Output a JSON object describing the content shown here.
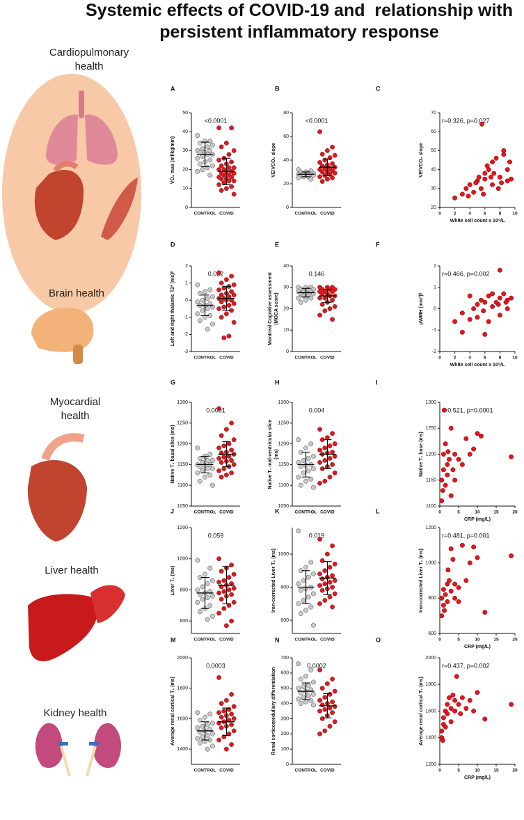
{
  "title": "Systemic effects of COVID-19 and  relationship with persistent inflammatory response",
  "sections": [
    "Cardiopulmonary health",
    "Brain health",
    "Myocardial health",
    "Liver health",
    "Kidney health"
  ],
  "chart_data": [
    {
      "type": "strip",
      "panel": "A",
      "annotation": "<0.0001",
      "ylabel": "VO₂ max (ml/kg/min)",
      "ylim": [
        0,
        50
      ],
      "yticks": [
        0,
        10,
        20,
        30,
        40,
        50
      ],
      "groups": [
        {
          "name": "CONTROL",
          "color": "#c8c8c8",
          "values": [
            38,
            35,
            35,
            34,
            33,
            32,
            31,
            30,
            30,
            29,
            29,
            28,
            28,
            27,
            26,
            25,
            24,
            23,
            22,
            21,
            20,
            19,
            17
          ],
          "mean": 28,
          "sd": 6.5
        },
        {
          "name": "COVID",
          "color": "#e8141a",
          "values": [
            42,
            42,
            34,
            32,
            30,
            28,
            26,
            25,
            24,
            23,
            22,
            21,
            21,
            20,
            20,
            19,
            19,
            18,
            18,
            17,
            17,
            16,
            16,
            15,
            15,
            14,
            14,
            13,
            12,
            11,
            10,
            9,
            7
          ],
          "mean": 19,
          "sd": 7
        }
      ]
    },
    {
      "type": "strip",
      "panel": "B",
      "annotation": "<0.0001",
      "ylabel": "VE/VCO₂ slope",
      "ylim": [
        0,
        80
      ],
      "yticks": [
        0,
        20,
        40,
        60,
        80
      ],
      "groups": [
        {
          "name": "CONTROL",
          "color": "#c8c8c8",
          "values": [
            32,
            31,
            30,
            30,
            29,
            29,
            28,
            28,
            28,
            27,
            27,
            27,
            26,
            26,
            25,
            24
          ],
          "mean": 28,
          "sd": 2
        },
        {
          "name": "COVID",
          "color": "#e8141a",
          "values": [
            64,
            51,
            48,
            45,
            44,
            42,
            40,
            38,
            37,
            36,
            35,
            34,
            33,
            33,
            32,
            31,
            30,
            30,
            29,
            28,
            27,
            26,
            25,
            24,
            22
          ],
          "mean": 34,
          "sd": 7
        }
      ]
    },
    {
      "type": "scatter",
      "panel": "C",
      "annotation": "r=0.326, p=0.027",
      "xlabel": "White cell count x 10⁹/L",
      "ylabel": "VE/VCO₂ slope",
      "xlim": [
        0,
        10
      ],
      "xticks": [
        0,
        2,
        4,
        6,
        8,
        10
      ],
      "ylim": [
        20,
        70
      ],
      "yticks": [
        20,
        30,
        40,
        50,
        60,
        70
      ],
      "color": "#e8141a",
      "x": [
        5.6,
        2,
        3,
        3.5,
        4,
        4.5,
        5,
        5.2,
        5.5,
        6,
        6,
        6.3,
        6.5,
        7,
        7,
        7.5,
        7.8,
        8,
        8.5,
        8.5,
        9,
        9,
        9.3,
        9.5,
        4.8,
        5.8,
        6.8,
        8.2,
        3.8,
        7.2
      ],
      "y": [
        64,
        25,
        27,
        30,
        32,
        28,
        34,
        36,
        30,
        38,
        35,
        42,
        40,
        32,
        44,
        46,
        30,
        36,
        48,
        50,
        34,
        40,
        44,
        35,
        33,
        27,
        36,
        33,
        26,
        38
      ]
    },
    {
      "type": "strip",
      "panel": "D",
      "annotation": "0.022",
      "ylabel": "Left and right thalamic T2* (ms)ᵝ",
      "ylim": [
        -3,
        2
      ],
      "yticks": [
        -3,
        -2,
        -1,
        0,
        1,
        2
      ],
      "groups": [
        {
          "name": "CONTROL",
          "color": "#c8c8c8",
          "values": [
            0.9,
            0.6,
            0.5,
            0.4,
            0.2,
            0.1,
            0,
            -0.1,
            -0.2,
            -0.3,
            -0.3,
            -0.4,
            -0.5,
            -0.6,
            -0.8,
            -0.9,
            -1,
            -1.2,
            -1.4,
            -1.7
          ],
          "mean": -0.3,
          "sd": 0.6
        },
        {
          "name": "COVID",
          "color": "#e8141a",
          "values": [
            1.6,
            1.4,
            1.2,
            1,
            0.9,
            0.8,
            0.7,
            0.6,
            0.5,
            0.4,
            0.3,
            0.3,
            0.2,
            0.1,
            0.1,
            0,
            0,
            -0.1,
            -0.2,
            -0.3,
            -0.4,
            -0.5,
            -0.6,
            -0.8,
            -1,
            -1.3,
            -2.1,
            -2.2
          ],
          "mean": 0.1,
          "sd": 0.7
        }
      ]
    },
    {
      "type": "strip",
      "panel": "E",
      "annotation": "0.146",
      "ylabel": [
        "Montreal Cognitive assessment",
        "(MOCA score)"
      ],
      "ylim": [
        0,
        40
      ],
      "yticks": [
        0,
        10,
        20,
        30,
        40
      ],
      "groups": [
        {
          "name": "CONTROL",
          "color": "#c8c8c8",
          "values": [
            30,
            30,
            30,
            29,
            29,
            29,
            28,
            28,
            28,
            27,
            27,
            27,
            26,
            26,
            25,
            25,
            24,
            23
          ],
          "mean": 27.5,
          "sd": 2
        },
        {
          "name": "COVID",
          "color": "#e8141a",
          "values": [
            30,
            30,
            30,
            29,
            29,
            29,
            28,
            28,
            28,
            27,
            27,
            26,
            26,
            25,
            25,
            24,
            23,
            22,
            21,
            20,
            19,
            17,
            15
          ],
          "mean": 26,
          "sd": 3
        }
      ]
    },
    {
      "type": "scatter",
      "panel": "F",
      "annotation": "r=0.466, p=0.002",
      "xlabel": "White cell count x 10⁹/L",
      "ylabel": "pWMH (mm³)ᵝ",
      "xlim": [
        0,
        10
      ],
      "xticks": [
        0,
        2,
        4,
        6,
        8,
        10
      ],
      "ylim": [
        -2,
        2
      ],
      "yticks": [
        -2,
        -1,
        0,
        1,
        2
      ],
      "color": "#e8141a",
      "x": [
        8,
        2,
        3,
        3,
        4,
        4.5,
        5,
        5,
        5.5,
        6,
        6,
        6.5,
        6.5,
        7,
        7,
        7.5,
        8,
        8,
        8.5,
        9,
        9,
        9.5,
        4,
        5.8,
        7.8,
        8.8
      ],
      "y": [
        1.8,
        -0.6,
        -1.1,
        -0.2,
        -0.5,
        0,
        0.2,
        -0.4,
        0.4,
        -1.2,
        0.3,
        0.6,
        -0.6,
        0.1,
        0.7,
        0.3,
        0.5,
        -0.3,
        0.7,
        0.4,
        0,
        0.5,
        0.6,
        -0.1,
        0.2,
        0.3
      ]
    },
    {
      "type": "strip",
      "panel": "G",
      "annotation": "0.0001",
      "ylabel": "Native T₁ basal slice  (ms)",
      "ylim": [
        1050,
        1300
      ],
      "yticks": [
        1050,
        1100,
        1150,
        1200,
        1250,
        1300
      ],
      "groups": [
        {
          "name": "CONTROL",
          "color": "#c8c8c8",
          "values": [
            1190,
            1175,
            1170,
            1165,
            1160,
            1160,
            1155,
            1150,
            1150,
            1148,
            1145,
            1140,
            1140,
            1135,
            1130,
            1125,
            1120,
            1110,
            1100
          ],
          "mean": 1150,
          "sd": 20
        },
        {
          "name": "COVID",
          "color": "#e8141a",
          "values": [
            1285,
            1250,
            1235,
            1220,
            1210,
            1200,
            1195,
            1190,
            1185,
            1180,
            1178,
            1175,
            1170,
            1168,
            1165,
            1160,
            1158,
            1155,
            1150,
            1145,
            1140,
            1135,
            1130,
            1125,
            1120
          ],
          "mean": 1175,
          "sd": 30
        }
      ]
    },
    {
      "type": "strip",
      "panel": "H",
      "annotation": "0.004",
      "ylabel": [
        "Native T₁ mid-ventricular slice",
        "(ms)"
      ],
      "ylim": [
        1050,
        1300
      ],
      "yticks": [
        1050,
        1100,
        1150,
        1200,
        1250,
        1300
      ],
      "groups": [
        {
          "name": "CONTROL",
          "color": "#c8c8c8",
          "values": [
            1210,
            1200,
            1190,
            1180,
            1170,
            1165,
            1160,
            1155,
            1150,
            1148,
            1145,
            1140,
            1135,
            1130,
            1120,
            1115,
            1110,
            1100,
            1095
          ],
          "mean": 1150,
          "sd": 30
        },
        {
          "name": "COVID",
          "color": "#e8141a",
          "values": [
            1235,
            1225,
            1215,
            1210,
            1200,
            1195,
            1190,
            1185,
            1180,
            1178,
            1175,
            1170,
            1165,
            1160,
            1155,
            1150,
            1145,
            1140,
            1130,
            1120,
            1110,
            1105
          ],
          "mean": 1175,
          "sd": 35
        }
      ]
    },
    {
      "type": "scatter",
      "panel": "I",
      "annotation": "r=0.521, p=0.0001",
      "xlabel": "CRP (mg/L)",
      "ylabel": "Native T₁ base (ms)",
      "xlim": [
        0,
        20
      ],
      "xticks": [
        0,
        5,
        10,
        15,
        20
      ],
      "ylim": [
        1100,
        1300
      ],
      "yticks": [
        1100,
        1150,
        1200,
        1250,
        1300
      ],
      "color": "#e8141a",
      "x": [
        1.2,
        0.5,
        0.5,
        1,
        1,
        1.5,
        1.5,
        2,
        2,
        2.5,
        3,
        3,
        3.5,
        4,
        4,
        5,
        6,
        7,
        8,
        9,
        10,
        11,
        0.8,
        19,
        2.2
      ],
      "y": [
        1285,
        1110,
        1150,
        1170,
        1200,
        1140,
        1220,
        1180,
        1160,
        1190,
        1120,
        1250,
        1170,
        1200,
        1150,
        1190,
        1180,
        1230,
        1200,
        1210,
        1240,
        1235,
        1130,
        1195,
        1205
      ]
    },
    {
      "type": "strip",
      "panel": "J",
      "annotation": "0.059",
      "ylabel": "Liver  T₁ (ms)",
      "ylim": [
        520,
        1200
      ],
      "yticks": [
        600,
        800,
        1000,
        1200
      ],
      "groups": [
        {
          "name": "CONTROL",
          "color": "#c8c8c8",
          "values": [
            990,
            940,
            900,
            880,
            860,
            840,
            820,
            800,
            790,
            780,
            770,
            760,
            750,
            740,
            720,
            700,
            680,
            660,
            630,
            610
          ],
          "mean": 780,
          "sd": 100
        },
        {
          "name": "COVID",
          "color": "#e8141a",
          "values": [
            1000,
            960,
            940,
            920,
            900,
            880,
            860,
            850,
            840,
            830,
            820,
            810,
            800,
            790,
            780,
            770,
            760,
            740,
            720,
            700,
            680,
            650,
            600,
            570
          ],
          "mean": 830,
          "sd": 120
        }
      ]
    },
    {
      "type": "strip",
      "panel": "K",
      "annotation": "0.019",
      "ylabel": "Iron-corrected Liver T₁ (ms)",
      "ylim": [
        520,
        1160
      ],
      "yticks": [
        600,
        800,
        1000
      ],
      "groups": [
        {
          "name": "CONTROL",
          "color": "#c8c8c8",
          "values": [
            1140,
            950,
            920,
            900,
            880,
            860,
            840,
            820,
            800,
            790,
            780,
            760,
            740,
            720,
            700,
            680,
            660,
            640,
            570
          ],
          "mean": 800,
          "sd": 100
        },
        {
          "name": "COVID",
          "color": "#e8141a",
          "values": [
            1090,
            1050,
            1000,
            960,
            940,
            920,
            900,
            880,
            870,
            860,
            850,
            840,
            830,
            820,
            810,
            800,
            790,
            780,
            760,
            740,
            720,
            700,
            680
          ],
          "mean": 855,
          "sd": 100
        }
      ]
    },
    {
      "type": "scatter",
      "panel": "L",
      "annotation": "r=0.481, p=0.001",
      "xlabel": "CRP (mg/L)",
      "ylabel": "Iron-corrected Liver T₁ (ms)",
      "xlim": [
        0,
        20
      ],
      "xticks": [
        0,
        5,
        10,
        15,
        20
      ],
      "ylim": [
        600,
        1200
      ],
      "yticks": [
        600,
        800,
        1000,
        1200
      ],
      "color": "#e8141a",
      "x": [
        0.5,
        0.5,
        1,
        1,
        1.5,
        2,
        2,
        2.5,
        3,
        3,
        4,
        4,
        5,
        5,
        6,
        7,
        8,
        9,
        10,
        12,
        19,
        1.2,
        2.2,
        3.5
      ],
      "y": [
        700,
        800,
        760,
        850,
        820,
        880,
        780,
        900,
        840,
        1080,
        800,
        880,
        860,
        780,
        1100,
        900,
        1000,
        1090,
        1030,
        720,
        1040,
        730,
        960,
        1020
      ]
    },
    {
      "type": "strip",
      "panel": "M",
      "annotation": "0.0003",
      "ylabel": "Average renal cortical  T₁ (ms)",
      "ylim": [
        1300,
        2000
      ],
      "yticks": [
        1400,
        1600,
        1800,
        2000
      ],
      "groups": [
        {
          "name": "CONTROL",
          "color": "#c8c8c8",
          "values": [
            1640,
            1630,
            1610,
            1590,
            1570,
            1560,
            1550,
            1540,
            1530,
            1520,
            1510,
            1500,
            1490,
            1480,
            1470,
            1460,
            1450,
            1440,
            1420,
            1400
          ],
          "mean": 1520,
          "sd": 60
        },
        {
          "name": "COVID",
          "color": "#e8141a",
          "values": [
            1870,
            1760,
            1720,
            1700,
            1680,
            1660,
            1650,
            1640,
            1630,
            1620,
            1610,
            1600,
            1590,
            1580,
            1570,
            1560,
            1550,
            1540,
            1520,
            1500,
            1480,
            1460,
            1430,
            1400
          ],
          "mean": 1580,
          "sd": 90
        }
      ]
    },
    {
      "type": "strip",
      "panel": "N",
      "annotation": "0.0002",
      "ylabel": "Renal corticomedullary differentiation",
      "ylim": [
        0,
        700
      ],
      "yticks": [
        0,
        100,
        200,
        300,
        400,
        500,
        600,
        700
      ],
      "groups": [
        {
          "name": "CONTROL",
          "color": "#c8c8c8",
          "values": [
            660,
            620,
            580,
            560,
            540,
            520,
            510,
            500,
            490,
            480,
            470,
            460,
            450,
            440,
            430,
            420,
            410,
            400,
            390
          ],
          "mean": 480,
          "sd": 55
        },
        {
          "name": "COVID",
          "color": "#e8141a",
          "values": [
            620,
            560,
            530,
            500,
            480,
            460,
            440,
            420,
            410,
            400,
            390,
            380,
            370,
            360,
            350,
            340,
            320,
            300,
            280,
            250,
            220,
            200
          ],
          "mean": 385,
          "sd": 80
        }
      ]
    },
    {
      "type": "scatter",
      "panel": "O",
      "annotation": "r=0.437, p=0.002",
      "xlabel": "CRP (mg/L)",
      "ylabel": "Average renal cortical  T₁ (ms)",
      "xlim": [
        0,
        20
      ],
      "xticks": [
        0,
        5,
        10,
        15,
        20
      ],
      "ylim": [
        1200,
        2000
      ],
      "yticks": [
        1200,
        1400,
        1600,
        1800,
        2000
      ],
      "color": "#e8141a",
      "x": [
        0.5,
        0.5,
        1,
        1,
        1.5,
        1.5,
        2,
        2,
        2.5,
        3,
        3,
        4,
        4,
        4.5,
        5,
        5.5,
        6,
        7,
        8,
        9,
        10,
        12,
        19,
        0.8,
        3.5
      ],
      "y": [
        1400,
        1450,
        1500,
        1550,
        1600,
        1480,
        1650,
        1580,
        1700,
        1620,
        1520,
        1680,
        1600,
        1860,
        1650,
        1580,
        1700,
        1620,
        1680,
        1600,
        1740,
        1540,
        1650,
        1380,
        1720
      ]
    }
  ]
}
